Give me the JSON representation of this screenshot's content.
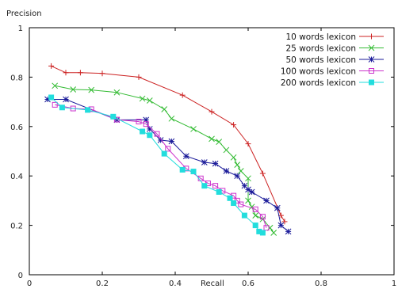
{
  "chart_data": {
    "type": "line",
    "xlabel": "Recall",
    "ylabel": "Precision",
    "xlim": [
      0,
      1
    ],
    "ylim": [
      0,
      1
    ],
    "xticks": [
      "0",
      "0.2",
      "0.4",
      "0.6",
      "0.8",
      "1"
    ],
    "yticks": [
      "0",
      "0.2",
      "0.4",
      "0.6",
      "0.8",
      "1"
    ],
    "grid": false,
    "legend_position": "top-right",
    "series": [
      {
        "name": "10 words lexicon",
        "color": "#cc2222",
        "marker": "plus",
        "points": [
          [
            0.06,
            0.845
          ],
          [
            0.1,
            0.818
          ],
          [
            0.14,
            0.818
          ],
          [
            0.2,
            0.815
          ],
          [
            0.3,
            0.8
          ],
          [
            0.42,
            0.727
          ],
          [
            0.5,
            0.66
          ],
          [
            0.56,
            0.607
          ],
          [
            0.6,
            0.53
          ],
          [
            0.64,
            0.41
          ],
          [
            0.69,
            0.24
          ],
          [
            0.7,
            0.215
          ]
        ]
      },
      {
        "name": "25 words lexicon",
        "color": "#33bb33",
        "marker": "cross",
        "points": [
          [
            0.07,
            0.765
          ],
          [
            0.12,
            0.75
          ],
          [
            0.17,
            0.748
          ],
          [
            0.24,
            0.738
          ],
          [
            0.31,
            0.713
          ],
          [
            0.33,
            0.705
          ],
          [
            0.37,
            0.67
          ],
          [
            0.39,
            0.632
          ],
          [
            0.45,
            0.59
          ],
          [
            0.5,
            0.55
          ],
          [
            0.52,
            0.538
          ],
          [
            0.54,
            0.505
          ],
          [
            0.56,
            0.475
          ],
          [
            0.57,
            0.445
          ],
          [
            0.58,
            0.42
          ],
          [
            0.6,
            0.39
          ],
          [
            0.6,
            0.3
          ],
          [
            0.61,
            0.275
          ],
          [
            0.62,
            0.24
          ],
          [
            0.64,
            0.225
          ],
          [
            0.66,
            0.19
          ],
          [
            0.67,
            0.17
          ]
        ]
      },
      {
        "name": "50 words lexicon",
        "color": "#1a1a99",
        "marker": "star",
        "points": [
          [
            0.05,
            0.71
          ],
          [
            0.1,
            0.71
          ],
          [
            0.24,
            0.627
          ],
          [
            0.32,
            0.627
          ],
          [
            0.33,
            0.59
          ],
          [
            0.36,
            0.545
          ],
          [
            0.39,
            0.54
          ],
          [
            0.43,
            0.48
          ],
          [
            0.48,
            0.455
          ],
          [
            0.51,
            0.45
          ],
          [
            0.54,
            0.42
          ],
          [
            0.57,
            0.4
          ],
          [
            0.59,
            0.36
          ],
          [
            0.6,
            0.345
          ],
          [
            0.61,
            0.335
          ],
          [
            0.65,
            0.3
          ],
          [
            0.68,
            0.27
          ],
          [
            0.69,
            0.2
          ],
          [
            0.71,
            0.175
          ]
        ]
      },
      {
        "name": "100 words lexicon",
        "color": "#cc33cc",
        "marker": "square",
        "points": [
          [
            0.07,
            0.688
          ],
          [
            0.12,
            0.673
          ],
          [
            0.17,
            0.67
          ],
          [
            0.24,
            0.628
          ],
          [
            0.3,
            0.62
          ],
          [
            0.32,
            0.61
          ],
          [
            0.35,
            0.57
          ],
          [
            0.38,
            0.51
          ],
          [
            0.43,
            0.43
          ],
          [
            0.47,
            0.39
          ],
          [
            0.49,
            0.37
          ],
          [
            0.51,
            0.36
          ],
          [
            0.53,
            0.34
          ],
          [
            0.56,
            0.32
          ],
          [
            0.57,
            0.3
          ],
          [
            0.58,
            0.285
          ],
          [
            0.62,
            0.265
          ],
          [
            0.64,
            0.235
          ],
          [
            0.65,
            0.19
          ]
        ]
      },
      {
        "name": "200 words lexicon",
        "color": "#22dddd",
        "marker": "filled-square",
        "points": [
          [
            0.06,
            0.718
          ],
          [
            0.09,
            0.677
          ],
          [
            0.16,
            0.667
          ],
          [
            0.23,
            0.64
          ],
          [
            0.31,
            0.58
          ],
          [
            0.33,
            0.565
          ],
          [
            0.37,
            0.49
          ],
          [
            0.42,
            0.425
          ],
          [
            0.45,
            0.418
          ],
          [
            0.48,
            0.36
          ],
          [
            0.52,
            0.335
          ],
          [
            0.55,
            0.31
          ],
          [
            0.56,
            0.29
          ],
          [
            0.59,
            0.24
          ],
          [
            0.62,
            0.2
          ],
          [
            0.63,
            0.175
          ],
          [
            0.64,
            0.17
          ]
        ]
      }
    ]
  }
}
